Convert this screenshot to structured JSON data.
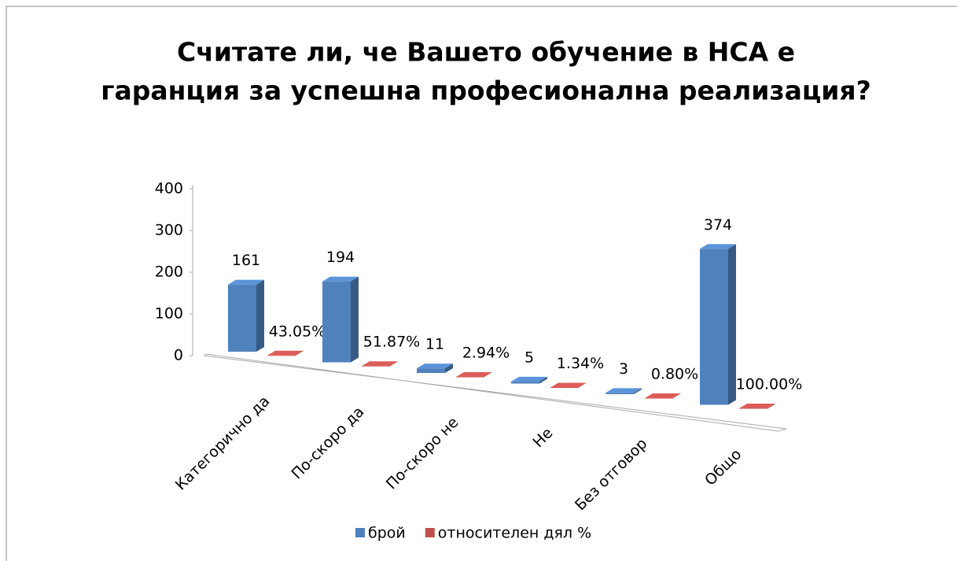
{
  "chart_data": {
    "type": "bar3d",
    "title": "Считате ли, че Вашето обучение в НСА е гаранция за успешна професионална реализация?",
    "categories": [
      "Категорично да",
      "По-скоро да",
      "По-скоро не",
      "Не",
      "Без отговор",
      "Общо"
    ],
    "series": [
      {
        "name": "брой",
        "color": "#4f81bd",
        "values": [
          161,
          194,
          11,
          5,
          3,
          374
        ]
      },
      {
        "name": "относителен дял %",
        "color": "#c0504d",
        "values": [
          0.4305,
          0.5187,
          0.0294,
          0.0134,
          0.008,
          1.0
        ],
        "value_labels": [
          "43.05%",
          "51.87%",
          "2.94%",
          "1.34%",
          "0.80%",
          "100.00%"
        ]
      }
    ],
    "ylim": [
      0,
      400
    ],
    "yticks": [
      0,
      100,
      200,
      300,
      400
    ],
    "legend": "bottom"
  }
}
